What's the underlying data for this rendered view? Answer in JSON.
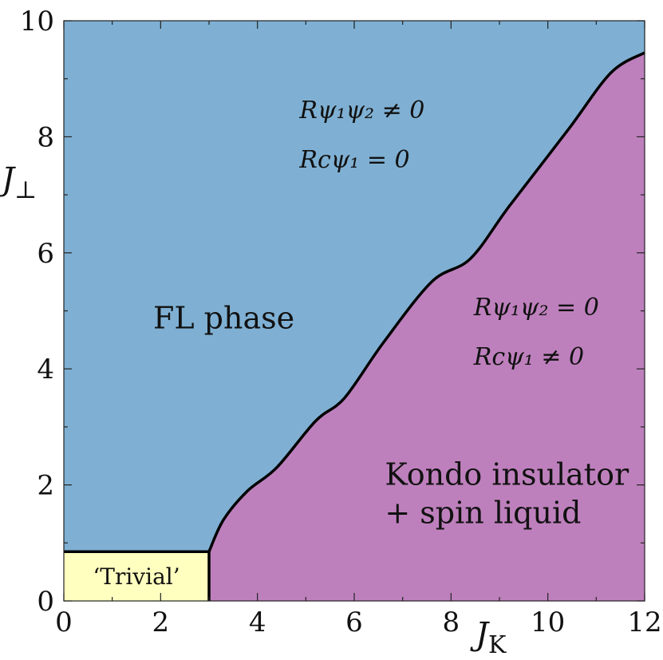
{
  "chart_data": {
    "type": "phase-diagram",
    "xlabel": "J_K",
    "ylabel": "J_⊥",
    "xlim": [
      0,
      12
    ],
    "ylim": [
      0,
      10
    ],
    "x_ticks": [
      0,
      2,
      4,
      6,
      8,
      10,
      12
    ],
    "y_ticks": [
      0,
      2,
      4,
      6,
      8,
      10
    ],
    "colors": {
      "fl_phase": "#7fb0d3",
      "kondo_phase": "#be80bd",
      "trivial_phase": "#ffffbf",
      "boundary": "#000000"
    },
    "boundary": {
      "x": [
        3.0,
        3.3,
        3.8,
        4.4,
        5.2,
        5.8,
        6.6,
        7.6,
        8.4,
        9.2,
        10.4,
        11.3,
        12.0
      ],
      "y": [
        0.85,
        1.4,
        1.9,
        2.3,
        3.1,
        3.5,
        4.45,
        5.5,
        5.9,
        6.8,
        8.1,
        9.1,
        9.45
      ]
    },
    "trivial_region": {
      "x_max": 3.0,
      "y_max": 0.85,
      "label": "‘Trivial’"
    },
    "regions": [
      {
        "name": "fl",
        "label": "FL phase",
        "anchor": [
          3.0,
          4.7
        ],
        "annotations": [
          "Rψ₁ψ₂ ≠ 0",
          "Rcψ₁ = 0"
        ],
        "annotation_anchor": [
          5.1,
          8.6
        ]
      },
      {
        "name": "kondo",
        "label": [
          "Kondo insulator",
          "+ spin liquid"
        ],
        "anchor": [
          9.6,
          2.0
        ],
        "annotations": [
          "Rψ₁ψ₂ = 0",
          "Rcψ₁ ≠ 0"
        ],
        "annotation_anchor": [
          8.7,
          5.2
        ]
      }
    ]
  }
}
